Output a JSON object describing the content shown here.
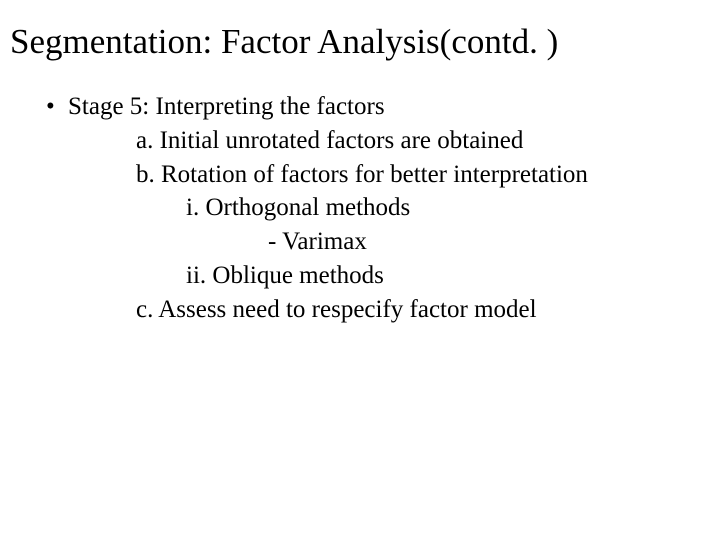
{
  "title": "Segmentation: Factor Analysis(contd. )",
  "bullet": {
    "dot": "•",
    "text": "Stage 5: Interpreting the factors"
  },
  "lines": {
    "a": "a. Initial unrotated factors are obtained",
    "b": "b. Rotation of factors for better interpretation",
    "i": "i. Orthogonal methods",
    "dash": "- Varimax",
    "ii": "ii. Oblique methods",
    "c": "c. Assess need to respecify factor model"
  },
  "colors": {
    "background": "#ffffff",
    "text": "#000000"
  },
  "typography": {
    "title_fontsize": 35,
    "body_fontsize": 25,
    "font_family": "Times New Roman"
  }
}
